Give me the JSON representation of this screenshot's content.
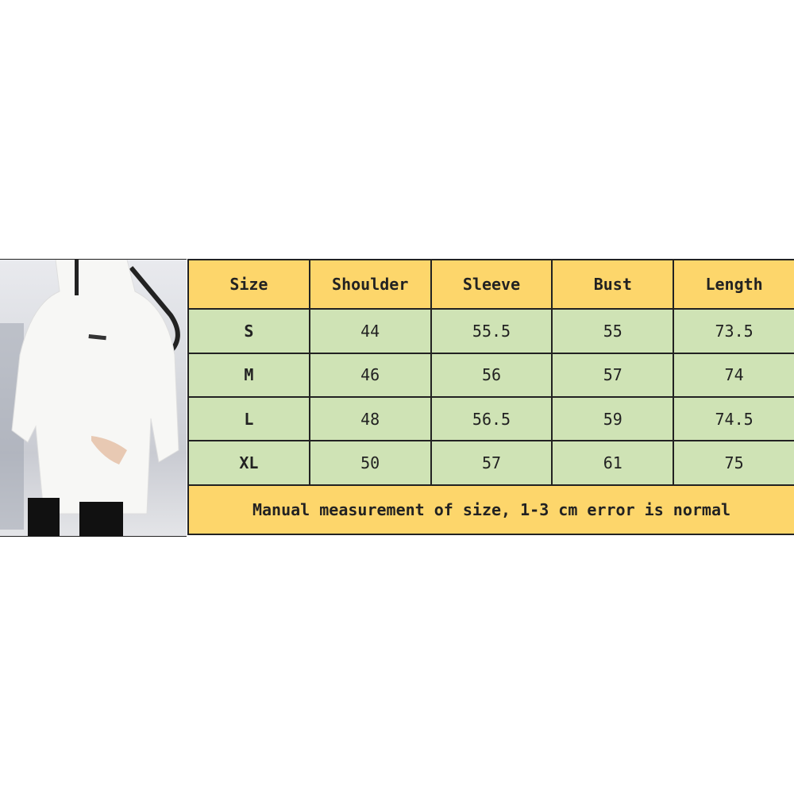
{
  "table": {
    "headers": [
      "Size",
      "Shoulder",
      "Sleeve",
      "Bust",
      "Length"
    ],
    "rows": [
      [
        "S",
        "44",
        "55.5",
        "55",
        "73.5"
      ],
      [
        "M",
        "46",
        "56",
        "57",
        "74"
      ],
      [
        "L",
        "48",
        "56.5",
        "59",
        "74.5"
      ],
      [
        "XL",
        "50",
        "57",
        "61",
        "75"
      ]
    ],
    "note": "Manual measurement of size, 1-3 cm error is normal"
  },
  "colors": {
    "header": "#fdd66b",
    "body": "#cfe3b5"
  }
}
